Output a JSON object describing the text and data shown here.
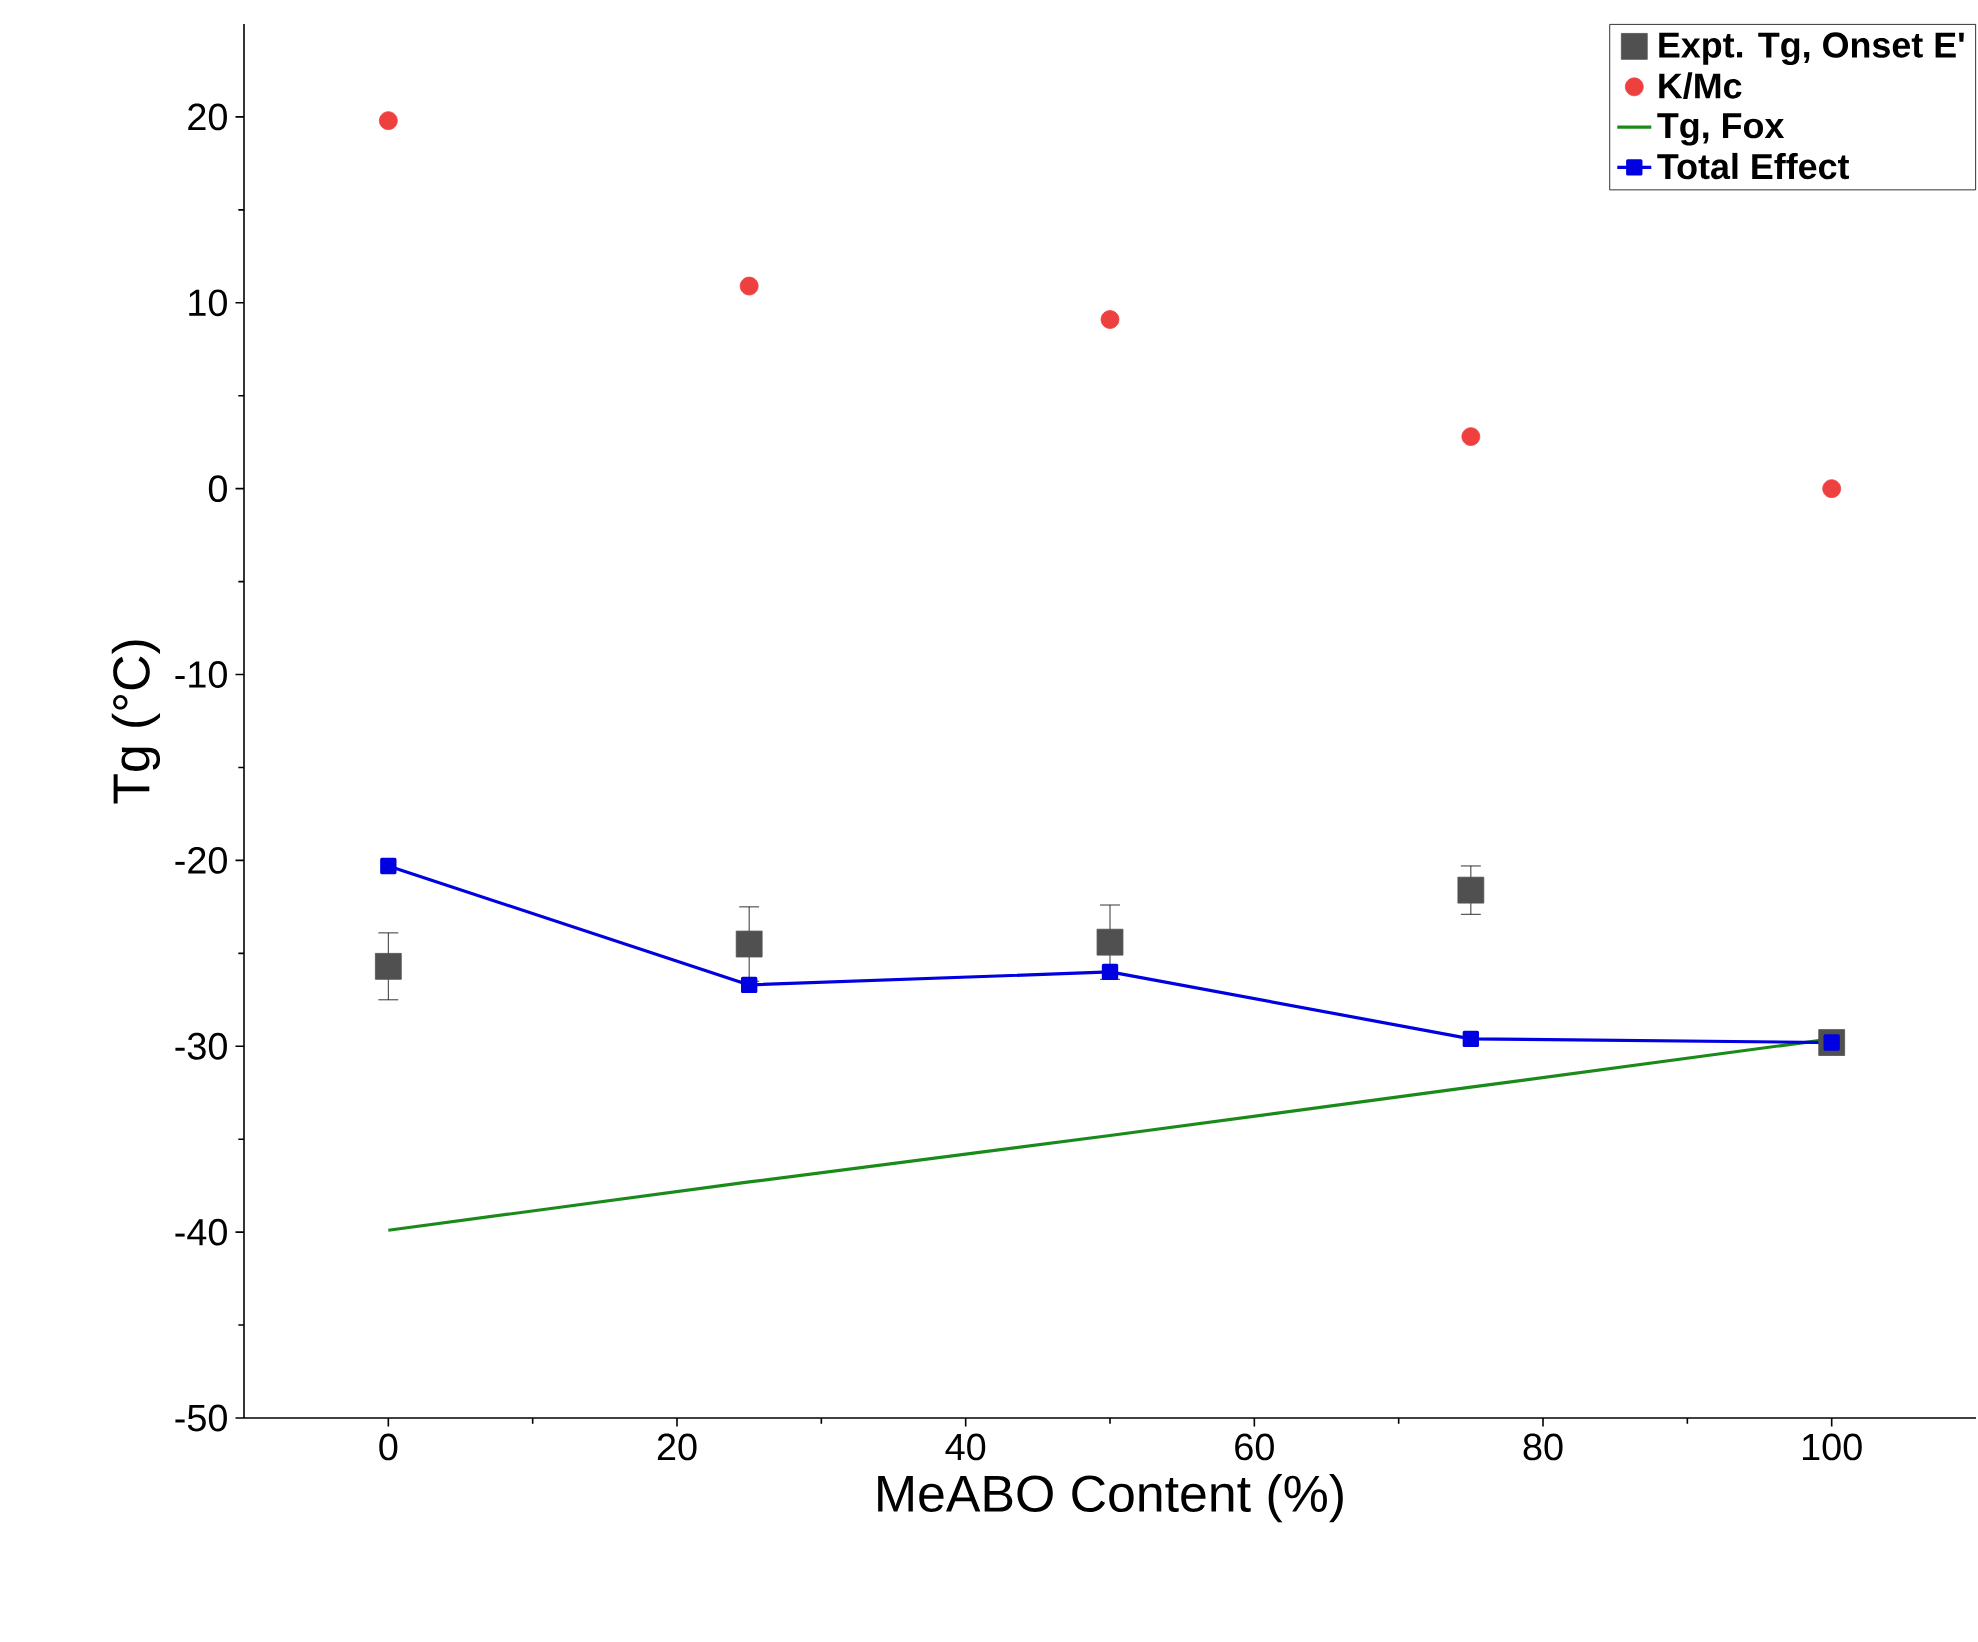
{
  "chart_data": {
    "type": "scatter",
    "xlabel": "MeABO Content (%)",
    "ylabel": "Tg (°C)",
    "x": [
      0,
      25,
      50,
      75,
      100
    ],
    "series": [
      {
        "name": "Expt. Tg, Onset E'",
        "marker": "square",
        "color": "#505050",
        "values": [
          -25.7,
          -24.5,
          -24.4,
          -21.6,
          -29.8
        ],
        "errors": [
          1.8,
          2,
          2,
          1.3,
          null
        ]
      },
      {
        "name": "K/Mc",
        "marker": "circle",
        "color": "#ef4040",
        "values": [
          19.8,
          10.9,
          9.1,
          2.8,
          0
        ]
      },
      {
        "name": "Tg, Fox",
        "type": "line",
        "marker": "none",
        "color": "#1a8a1a",
        "values": [
          -39.9,
          -37.3,
          -34.8,
          -32.2,
          -29.6
        ]
      },
      {
        "name": "Total Effect",
        "type": "line",
        "marker": "square",
        "color": "#0000e0",
        "values": [
          -20.3,
          -26.7,
          -26.0,
          -29.6,
          -29.8
        ]
      }
    ],
    "xlim": [
      -10,
      110
    ],
    "ylim": [
      -50,
      25
    ],
    "xticks": [
      0,
      20,
      40,
      60,
      80,
      100
    ],
    "yticks": [
      -50,
      -40,
      -30,
      -20,
      -10,
      0,
      10,
      20
    ],
    "legend": "top right",
    "grid": false
  }
}
